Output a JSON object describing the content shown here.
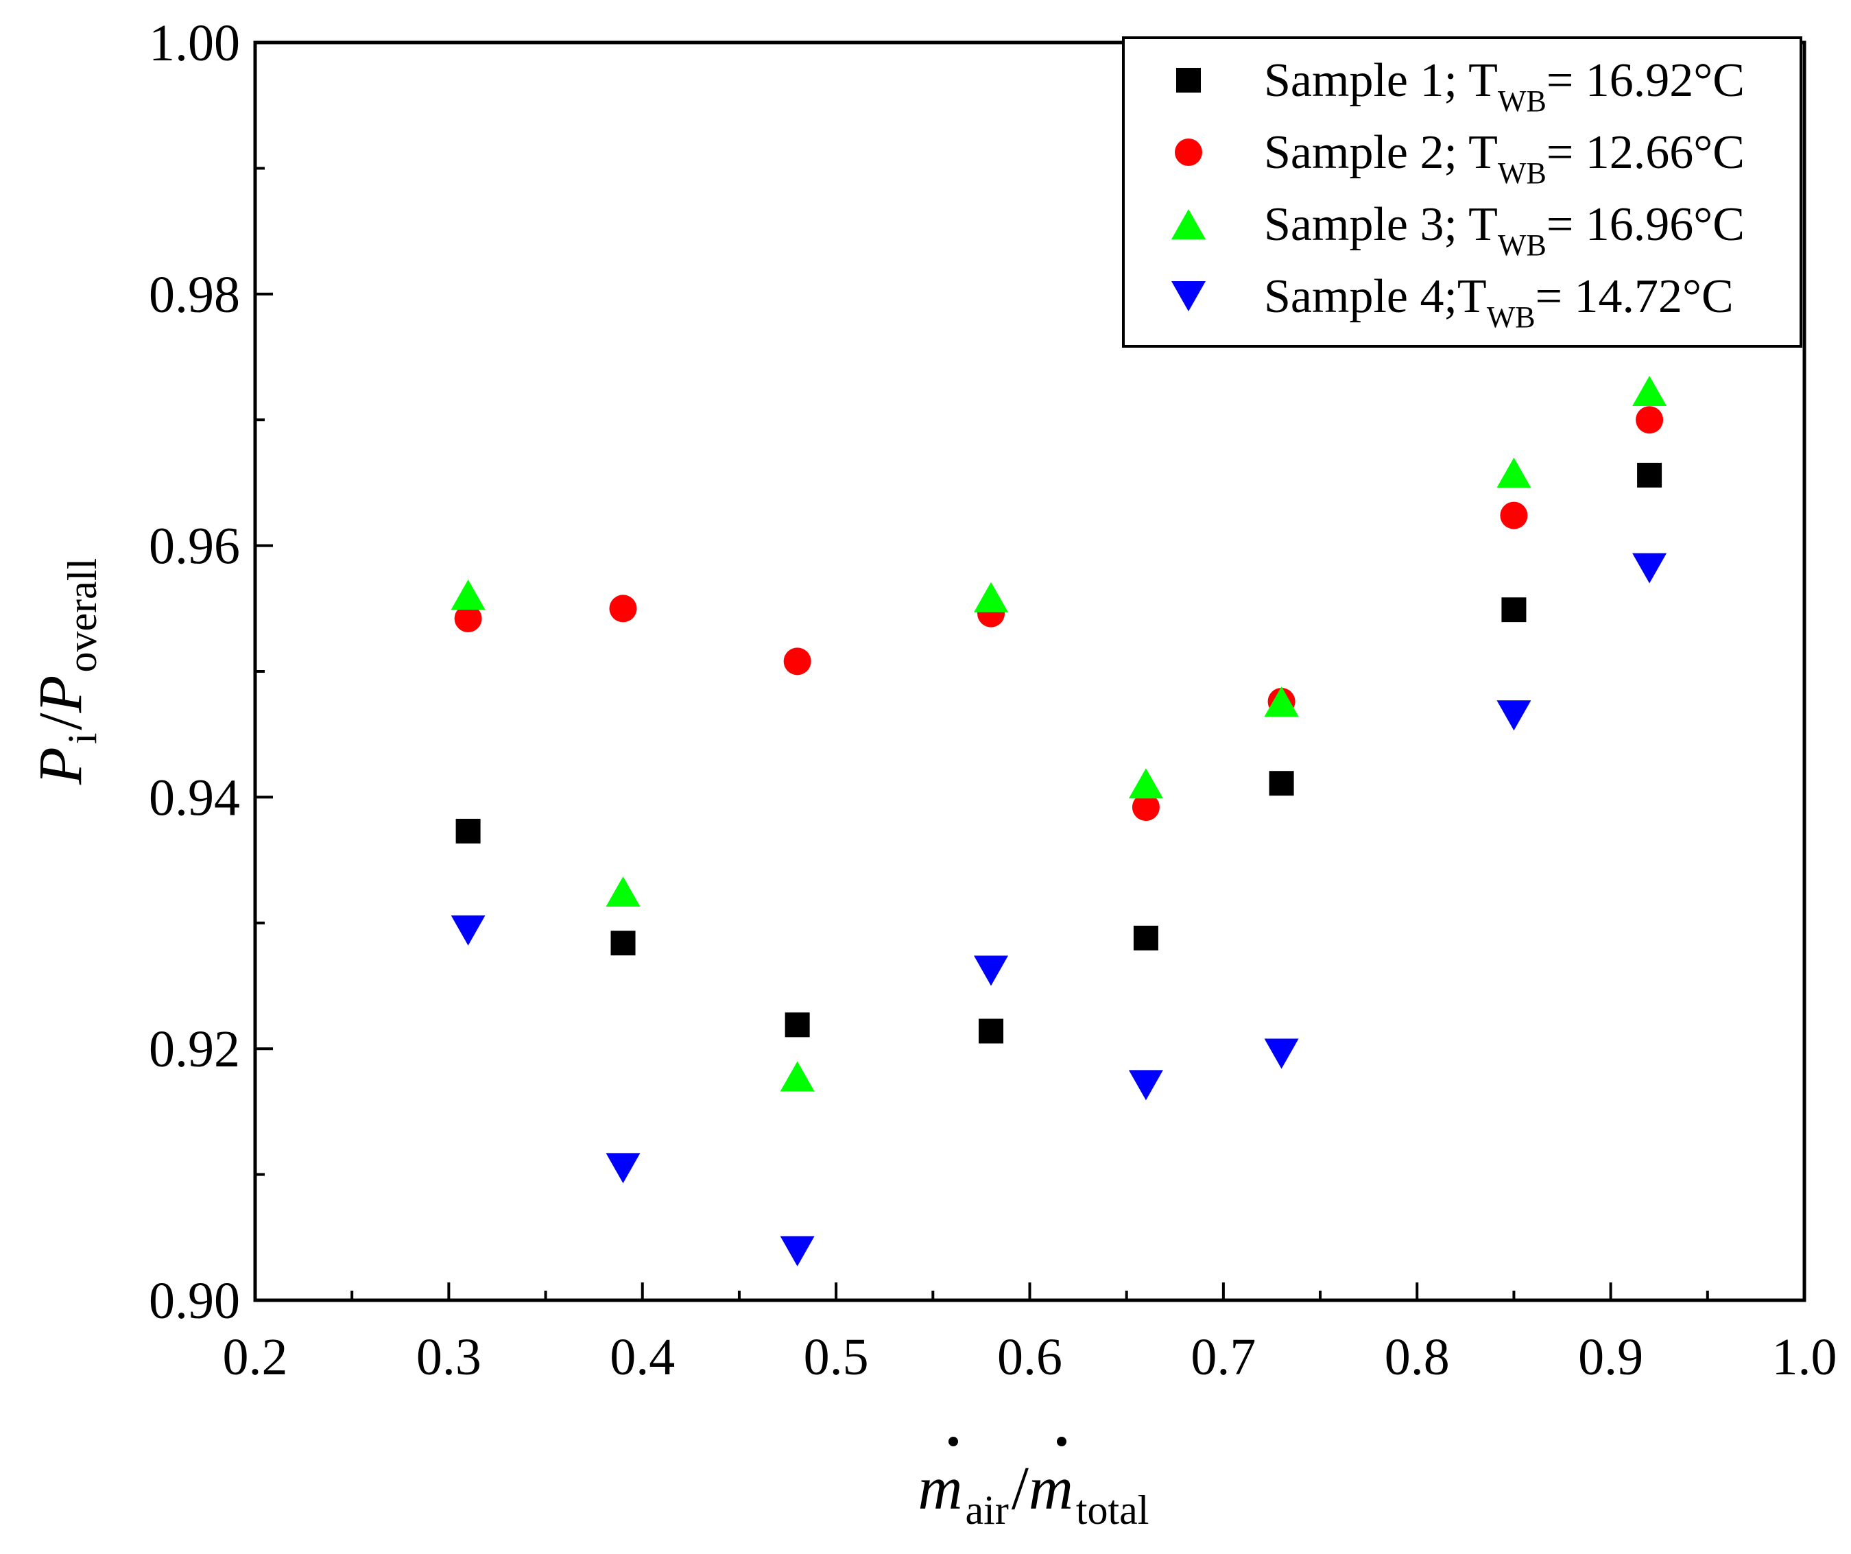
{
  "chart_data": {
    "type": "scatter",
    "title": "",
    "xlim": [
      0.2,
      1.0
    ],
    "ylim": [
      0.9,
      1.0
    ],
    "x_ticks": [
      "0.2",
      "0.3",
      "0.4",
      "0.5",
      "0.6",
      "0.7",
      "0.8",
      "0.9",
      "1.0"
    ],
    "y_ticks": [
      "0.90",
      "0.92",
      "0.94",
      "0.96",
      "0.98",
      "1.00"
    ],
    "xlabel": {
      "main1": "m",
      "sub1": "air",
      "sep": "/",
      "main2": "m",
      "sub2": "total"
    },
    "ylabel": {
      "main1": "P",
      "sub1": "i",
      "sep": "/",
      "main2": "P",
      "sub2": "overall"
    },
    "legend_position": "top-right",
    "series": [
      {
        "name": "Sample 1; T_WB = 16.92°C",
        "legend_prefix": "Sample 1; T",
        "legend_sub": "WB",
        "legend_suffix": "= 16.92°C",
        "marker": "square",
        "color": "#000000",
        "x": [
          0.31,
          0.39,
          0.48,
          0.58,
          0.66,
          0.73,
          0.85,
          0.92
        ],
        "y": [
          0.9373,
          0.9284,
          0.9219,
          0.9214,
          0.9288,
          0.9411,
          0.9549,
          0.9656
        ]
      },
      {
        "name": "Sample 2; T_WB = 12.66°C",
        "legend_prefix": "Sample 2; T",
        "legend_sub": "WB",
        "legend_suffix": "= 12.66°C",
        "marker": "circle",
        "color": "#ff0000",
        "x": [
          0.31,
          0.39,
          0.48,
          0.58,
          0.66,
          0.73,
          0.85,
          0.92
        ],
        "y": [
          0.9542,
          0.955,
          0.9508,
          0.9546,
          0.9392,
          0.9476,
          0.9624,
          0.97
        ]
      },
      {
        "name": "Sample 3; T_WB = 16.96°C",
        "legend_prefix": "Sample 3; T",
        "legend_sub": "WB",
        "legend_suffix": "= 16.96°C",
        "marker": "triangle-up",
        "color": "#00ff00",
        "x": [
          0.31,
          0.39,
          0.48,
          0.58,
          0.66,
          0.73,
          0.85,
          0.92
        ],
        "y": [
          0.9561,
          0.9325,
          0.9178,
          0.9559,
          0.9411,
          0.9476,
          0.9658,
          0.9723
        ]
      },
      {
        "name": "Sample 4; T_WB = 14.72°C",
        "legend_prefix": "Sample 4;T",
        "legend_sub": "WB",
        "legend_suffix": "= 14.72°C",
        "marker": "triangle-down",
        "color": "#0000ff",
        "x": [
          0.31,
          0.39,
          0.48,
          0.58,
          0.66,
          0.73,
          0.85,
          0.92
        ],
        "y": [
          0.9294,
          0.9105,
          0.9039,
          0.9262,
          0.9171,
          0.9196,
          0.9465,
          0.9582
        ]
      }
    ]
  }
}
